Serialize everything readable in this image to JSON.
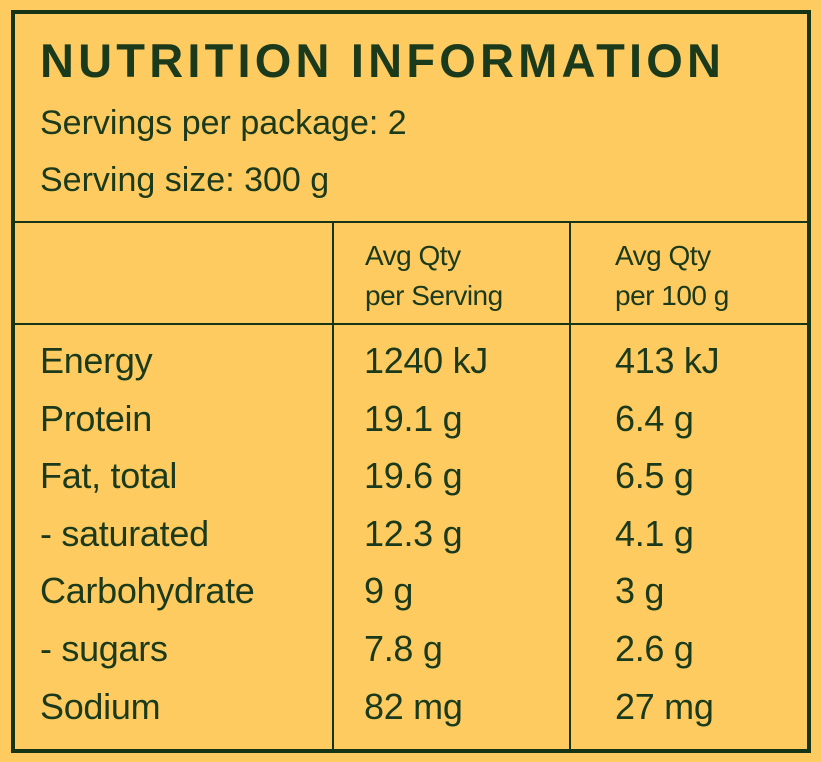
{
  "title": "NUTRITION INFORMATION",
  "servings_per_package": "Servings per package: 2",
  "serving_size": "Serving size: 300 g",
  "columns": [
    {
      "line1": "Avg Qty",
      "line2": "per Serving"
    },
    {
      "line1": "Avg Qty",
      "line2": "per 100 g"
    }
  ],
  "rows": [
    {
      "name": "Energy",
      "per_serving": "1240 kJ",
      "per_100g": "413 kJ"
    },
    {
      "name": "Protein",
      "per_serving": "19.1 g",
      "per_100g": "6.4 g"
    },
    {
      "name": "Fat, total",
      "per_serving": "19.6 g",
      "per_100g": "6.5 g"
    },
    {
      "name": "- saturated",
      "per_serving": "12.3 g",
      "per_100g": "4.1 g"
    },
    {
      "name": "Carbohydrate",
      "per_serving": "9 g",
      "per_100g": "3 g"
    },
    {
      "name": "- sugars",
      "per_serving": "7.8 g",
      "per_100g": "2.6 g"
    },
    {
      "name": "Sodium",
      "per_serving": "82 mg",
      "per_100g": "27 mg"
    }
  ],
  "colors": {
    "background": "#fdcb5f",
    "ink": "#1b3a1b"
  }
}
